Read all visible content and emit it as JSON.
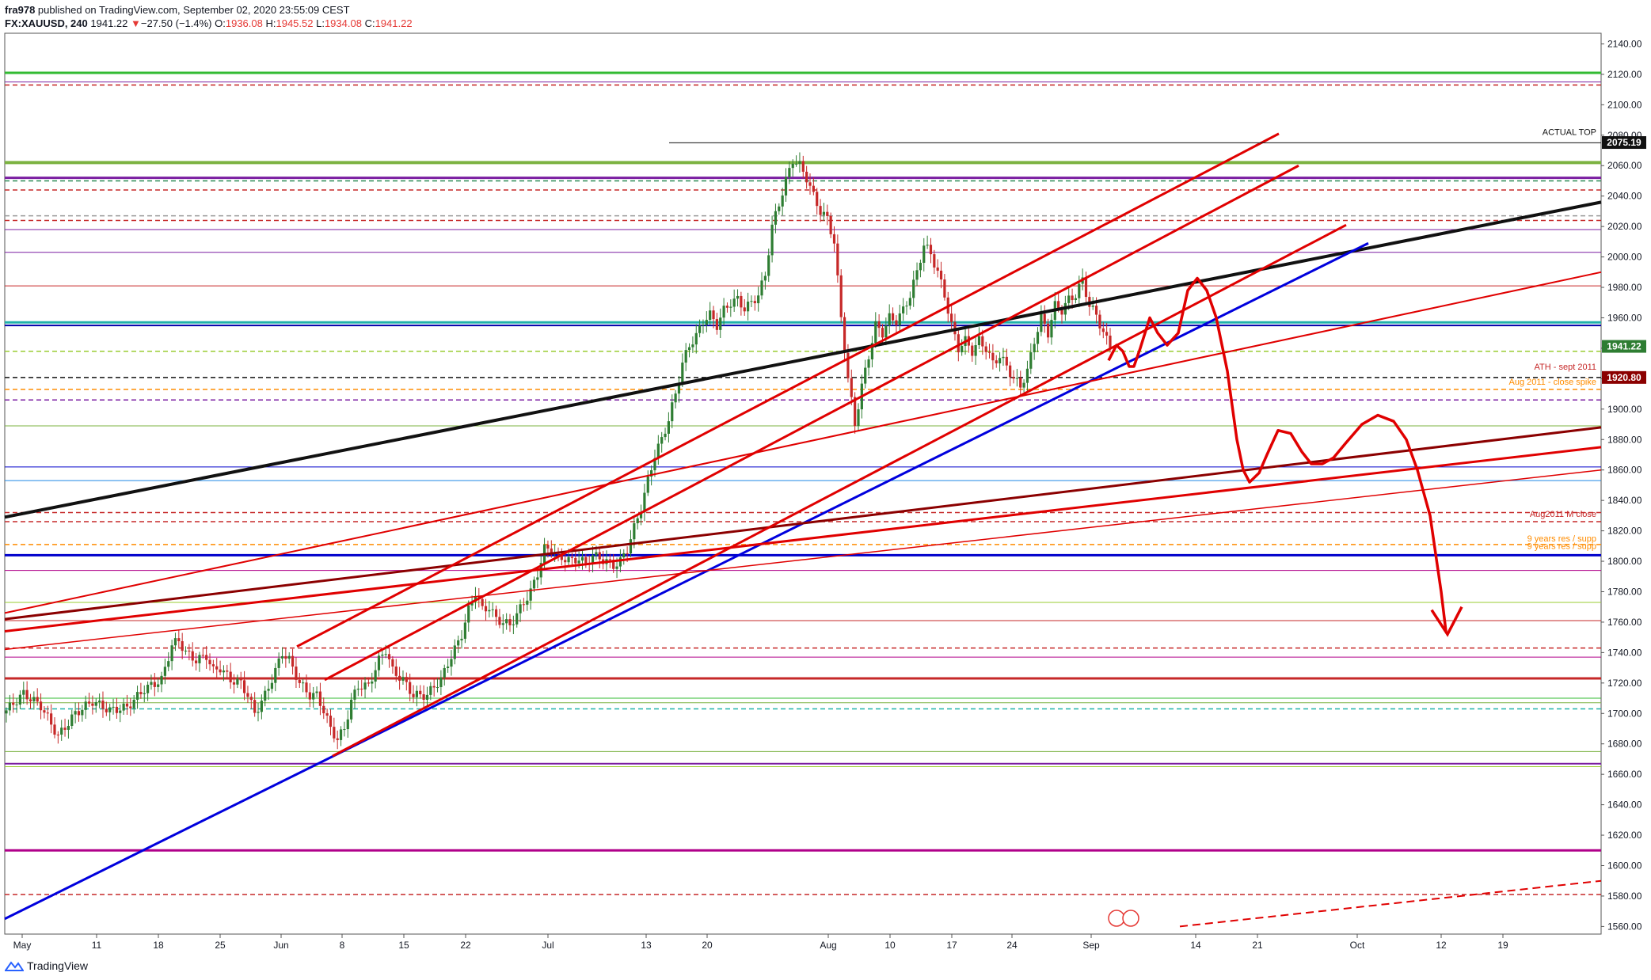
{
  "header": {
    "publisher_line_user": "fra978",
    "publisher_line_rest": " published on TradingView.com, September 02, 2020 23:55:09 CEST",
    "symbol": "FX:XAUUSD, 240",
    "last": "1941.22",
    "change_arrow": "▼",
    "change": "−27.50 (−1.4%)",
    "o_label": "O:",
    "o_value": "1936.08",
    "h_label": "H:",
    "h_value": "1945.52",
    "l_label": "L:",
    "l_value": "1934.08",
    "c_label": "C:",
    "c_value": "1941.22"
  },
  "footer": {
    "brand": "TradingView"
  },
  "colors": {
    "up": "#2e7d32",
    "down": "#c62828",
    "red": "#e00000",
    "blue": "#0000dd",
    "black": "#111111",
    "darkred": "#8b0000",
    "green": "#33bb33",
    "purple": "#7b1fa2",
    "magenta": "#b0008a",
    "orange": "#ff8c00"
  },
  "chart_data": {
    "type": "candlestick",
    "symbol": "FX:XAUUSD",
    "timeframe": "240",
    "ylim": [
      1555,
      2147
    ],
    "y_ticks": [
      "2140.00",
      "2120.00",
      "2100.00",
      "2080.00",
      "2060.00",
      "2040.00",
      "2020.00",
      "2000.00",
      "1980.00",
      "1960.00",
      "1940.00",
      "1920.00",
      "1900.00",
      "1880.00",
      "1860.00",
      "1840.00",
      "1820.00",
      "1800.00",
      "1780.00",
      "1760.00",
      "1740.00",
      "1720.00",
      "1700.00",
      "1680.00",
      "1660.00",
      "1640.00",
      "1620.00",
      "1600.00",
      "1580.00",
      "1560.00"
    ],
    "x_ticks": [
      "May",
      "11",
      "18",
      "25",
      "Jun",
      "8",
      "15",
      "22",
      "Jul",
      "13",
      "20",
      "Aug",
      "10",
      "17",
      "24",
      "Sep",
      "14",
      "21",
      "Oct",
      "12",
      "19"
    ],
    "price_labels": [
      {
        "text": "2075.19",
        "price": 2075.19,
        "color": "#111111"
      },
      {
        "text": "1941.22",
        "price": 1941.22,
        "color": "#2e7d32"
      },
      {
        "text": "1920.80",
        "price": 1920.8,
        "color": "#8b0000"
      }
    ],
    "annotations": [
      {
        "text": "ACTUAL TOP",
        "price": 2079,
        "color": "#111111"
      },
      {
        "text": "ATH - sept 2011",
        "price": 1925,
        "color": "#c62828"
      },
      {
        "text": "Aug 2011 - close spike",
        "price": 1915,
        "color": "#ff8c00"
      },
      {
        "text": "Aug2011 M close",
        "price": 1828,
        "color": "#c62828"
      },
      {
        "text": "9 years res / supp",
        "price": 1812,
        "color": "#ff8c00"
      },
      {
        "text": "9 years res / supp",
        "price": 1807,
        "color": "#ff8c00"
      }
    ],
    "close_path": [
      [
        0,
        1702
      ],
      [
        5,
        1713
      ],
      [
        10,
        1705
      ],
      [
        15,
        1685
      ],
      [
        20,
        1700
      ],
      [
        25,
        1708
      ],
      [
        30,
        1702
      ],
      [
        35,
        1704
      ],
      [
        40,
        1716
      ],
      [
        45,
        1722
      ],
      [
        48,
        1745
      ],
      [
        50,
        1748
      ],
      [
        52,
        1740
      ],
      [
        55,
        1735
      ],
      [
        58,
        1738
      ],
      [
        60,
        1728
      ],
      [
        62,
        1730
      ],
      [
        65,
        1722
      ],
      [
        68,
        1720
      ],
      [
        70,
        1712
      ],
      [
        72,
        1700
      ],
      [
        75,
        1712
      ],
      [
        78,
        1728
      ],
      [
        80,
        1740
      ],
      [
        82,
        1735
      ],
      [
        85,
        1720
      ],
      [
        88,
        1712
      ],
      [
        90,
        1712
      ],
      [
        92,
        1702
      ],
      [
        94,
        1690
      ],
      [
        96,
        1683
      ],
      [
        98,
        1690
      ],
      [
        100,
        1708
      ],
      [
        102,
        1718
      ],
      [
        105,
        1718
      ],
      [
        108,
        1735
      ],
      [
        110,
        1742
      ],
      [
        112,
        1728
      ],
      [
        115,
        1722
      ],
      [
        118,
        1712
      ],
      [
        120,
        1712
      ],
      [
        122,
        1712
      ],
      [
        124,
        1718
      ],
      [
        126,
        1722
      ],
      [
        128,
        1733
      ],
      [
        130,
        1742
      ],
      [
        132,
        1752
      ],
      [
        134,
        1768
      ],
      [
        136,
        1780
      ],
      [
        138,
        1768
      ],
      [
        140,
        1770
      ],
      [
        142,
        1762
      ],
      [
        144,
        1760
      ],
      [
        146,
        1758
      ],
      [
        148,
        1765
      ],
      [
        150,
        1773
      ],
      [
        152,
        1780
      ],
      [
        154,
        1792
      ],
      [
        156,
        1808
      ],
      [
        158,
        1808
      ],
      [
        160,
        1802
      ],
      [
        162,
        1802
      ],
      [
        164,
        1800
      ],
      [
        166,
        1802
      ],
      [
        168,
        1798
      ],
      [
        170,
        1804
      ],
      [
        172,
        1802
      ],
      [
        174,
        1800
      ],
      [
        176,
        1797
      ],
      [
        178,
        1800
      ],
      [
        180,
        1808
      ],
      [
        182,
        1822
      ],
      [
        184,
        1835
      ],
      [
        186,
        1853
      ],
      [
        188,
        1870
      ],
      [
        190,
        1880
      ],
      [
        192,
        1893
      ],
      [
        194,
        1910
      ],
      [
        196,
        1930
      ],
      [
        198,
        1942
      ],
      [
        200,
        1948
      ],
      [
        202,
        1958
      ],
      [
        204,
        1962
      ],
      [
        206,
        1955
      ],
      [
        208,
        1965
      ],
      [
        210,
        1970
      ],
      [
        212,
        1972
      ],
      [
        214,
        1966
      ],
      [
        216,
        1970
      ],
      [
        218,
        1975
      ],
      [
        220,
        1988
      ],
      [
        222,
        2020
      ],
      [
        224,
        2035
      ],
      [
        226,
        2050
      ],
      [
        228,
        2064
      ],
      [
        230,
        2060
      ],
      [
        232,
        2052
      ],
      [
        234,
        2040
      ],
      [
        236,
        2030
      ],
      [
        238,
        2025
      ],
      [
        240,
        2010
      ],
      [
        242,
        1960
      ],
      [
        244,
        1920
      ],
      [
        246,
        1890
      ],
      [
        248,
        1915
      ],
      [
        250,
        1935
      ],
      [
        252,
        1955
      ],
      [
        254,
        1950
      ],
      [
        256,
        1960
      ],
      [
        258,
        1958
      ],
      [
        260,
        1965
      ],
      [
        262,
        1975
      ],
      [
        264,
        1990
      ],
      [
        266,
        2008
      ],
      [
        268,
        2002
      ],
      [
        270,
        1990
      ],
      [
        272,
        1975
      ],
      [
        274,
        1955
      ],
      [
        276,
        1940
      ],
      [
        278,
        1945
      ],
      [
        280,
        1938
      ],
      [
        282,
        1945
      ],
      [
        284,
        1940
      ],
      [
        286,
        1930
      ],
      [
        288,
        1935
      ],
      [
        290,
        1928
      ],
      [
        292,
        1920
      ],
      [
        294,
        1915
      ],
      [
        296,
        1925
      ],
      [
        298,
        1945
      ],
      [
        300,
        1960
      ],
      [
        302,
        1950
      ],
      [
        304,
        1968
      ],
      [
        306,
        1965
      ],
      [
        308,
        1972
      ],
      [
        310,
        1975
      ],
      [
        312,
        1985
      ],
      [
        314,
        1968
      ],
      [
        316,
        1962
      ],
      [
        318,
        1950
      ],
      [
        320,
        1941
      ]
    ],
    "dashed_levels": [
      {
        "price": 2113,
        "color": "#c62828"
      },
      {
        "price": 2050,
        "color": "#2e8b57"
      },
      {
        "price": 2044,
        "color": "#c62828"
      },
      {
        "price": 2027,
        "color": "#999999"
      },
      {
        "price": 2024,
        "color": "#c62828"
      },
      {
        "price": 1938,
        "color": "#9acd32"
      },
      {
        "price": 1920.8,
        "color": "#111111"
      },
      {
        "price": 1913,
        "color": "#ff8c00"
      },
      {
        "price": 1906,
        "color": "#7b1fa2"
      },
      {
        "price": 1832,
        "color": "#c62828"
      },
      {
        "price": 1826,
        "color": "#c62828"
      },
      {
        "price": 1811,
        "color": "#ff8c00"
      },
      {
        "price": 1743,
        "color": "#c62828"
      },
      {
        "price": 1703,
        "color": "#20b2aa"
      },
      {
        "price": 1581,
        "color": "#c62828"
      }
    ],
    "solid_levels": [
      {
        "price": 2121,
        "color": "#33bb33",
        "w": 3
      },
      {
        "price": 2115,
        "color": "#7b1fa2",
        "w": 1
      },
      {
        "price": 2062,
        "color": "#7cb342",
        "w": 4
      },
      {
        "price": 2052,
        "color": "#7b1fa2",
        "w": 3
      },
      {
        "price": 2018,
        "color": "#7b1fa2",
        "w": 1
      },
      {
        "price": 2003,
        "color": "#7b1fa2",
        "w": 1
      },
      {
        "price": 1981,
        "color": "#c62828",
        "w": 1
      },
      {
        "price": 1957,
        "color": "#20b2aa",
        "w": 3
      },
      {
        "price": 1955,
        "color": "#0000aa",
        "w": 2
      },
      {
        "price": 1889,
        "color": "#7cb342",
        "w": 1
      },
      {
        "price": 1862,
        "color": "#0000cc",
        "w": 1
      },
      {
        "price": 1853,
        "color": "#1e88e5",
        "w": 1
      },
      {
        "price": 1804,
        "color": "#0000cc",
        "w": 3
      },
      {
        "price": 1794,
        "color": "#b0008a",
        "w": 1
      },
      {
        "price": 1773,
        "color": "#9acd32",
        "w": 1
      },
      {
        "price": 1761,
        "color": "#c62828",
        "w": 1
      },
      {
        "price": 1737,
        "color": "#b0008a",
        "w": 1
      },
      {
        "price": 1723,
        "color": "#c62828",
        "w": 3
      },
      {
        "price": 1710,
        "color": "#33bb33",
        "w": 1
      },
      {
        "price": 1707,
        "color": "#7cb342",
        "w": 1
      },
      {
        "price": 1675,
        "color": "#7cb342",
        "w": 1
      },
      {
        "price": 1667,
        "color": "#7b1fa2",
        "w": 2
      },
      {
        "price": 1665,
        "color": "#9acd32",
        "w": 1
      },
      {
        "price": 1610,
        "color": "#b0008a",
        "w": 3
      }
    ]
  }
}
